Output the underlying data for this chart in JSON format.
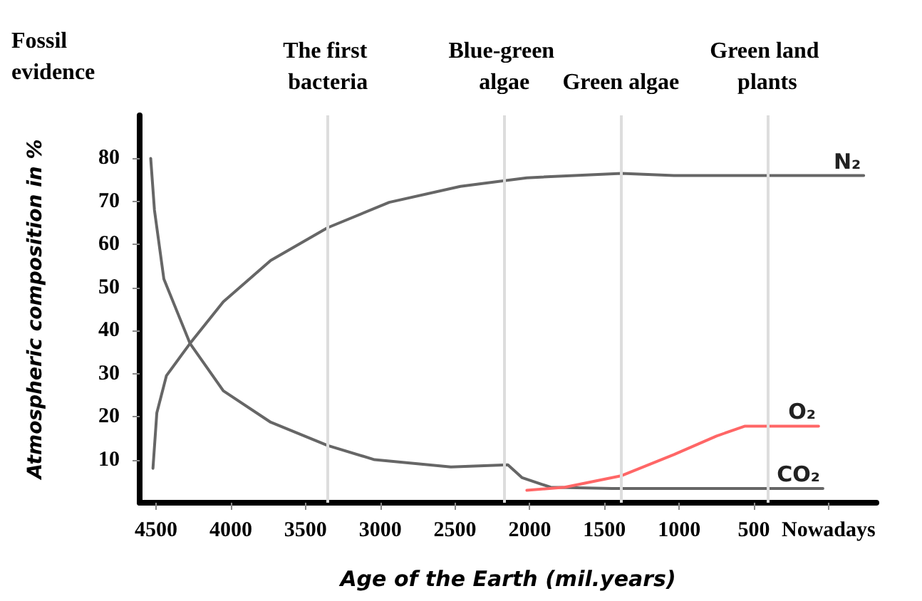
{
  "chart_data": {
    "type": "line",
    "xlabel": "Age of the Earth (mil.years)",
    "ylabel": "Atmospheric composition in %",
    "xlim": [
      4610,
      -320
    ],
    "xticks": [
      4500,
      4000,
      3500,
      3000,
      2500,
      2000,
      1500,
      1000,
      500,
      {
        "value": 0,
        "label": "Nowadays"
      }
    ],
    "ylim": [
      0,
      90
    ],
    "yticks": [
      10,
      20,
      30,
      40,
      50,
      60,
      70,
      80
    ],
    "series": [
      {
        "name": "N₂",
        "color": "#666666",
        "x": [
          4521,
          4495,
          4431,
          4273,
          4050,
          3733,
          3352,
          2940,
          2464,
          2019,
          1384,
          1035,
          -235
        ],
        "values": [
          8,
          20.9,
          29.5,
          37,
          46.7,
          56.3,
          63.9,
          69.8,
          73.5,
          75.5,
          76.5,
          76,
          76
        ]
      },
      {
        "name": "CO₂",
        "color": "#666666",
        "x": [
          4536,
          4511,
          4448,
          4273,
          4050,
          3733,
          3352,
          3038,
          2527,
          2146,
          2050,
          1860,
          1448,
          38
        ],
        "values": [
          80,
          68,
          52,
          37,
          26,
          18.7,
          13.3,
          10,
          8.3,
          8.8,
          5.8,
          3.6,
          3.3,
          3.3
        ]
      },
      {
        "name": "O₂",
        "color": "#ff6666",
        "x": [
          2019,
          1765,
          1384,
          1035,
          750,
          559,
          67
        ],
        "values": [
          2.9,
          3.6,
          6.3,
          11.2,
          15.5,
          17.8,
          17.8
        ]
      }
    ],
    "ref_lines": [
      {
        "axis": "x",
        "value": 3350,
        "label": "The first bacteria",
        "color": "#dddddd"
      },
      {
        "axis": "x",
        "value": 2170,
        "label": "Blue-green algae",
        "color": "#dddddd"
      },
      {
        "axis": "x",
        "value": 1390,
        "label": "Green algae",
        "color": "#dddddd"
      },
      {
        "axis": "x",
        "value": 410,
        "label": "Green land plants",
        "color": "#dddddd"
      }
    ],
    "annotations": [
      "Fossil evidence"
    ],
    "grid": false,
    "legend": false,
    "marker": "none",
    "line_style": "solid"
  }
}
